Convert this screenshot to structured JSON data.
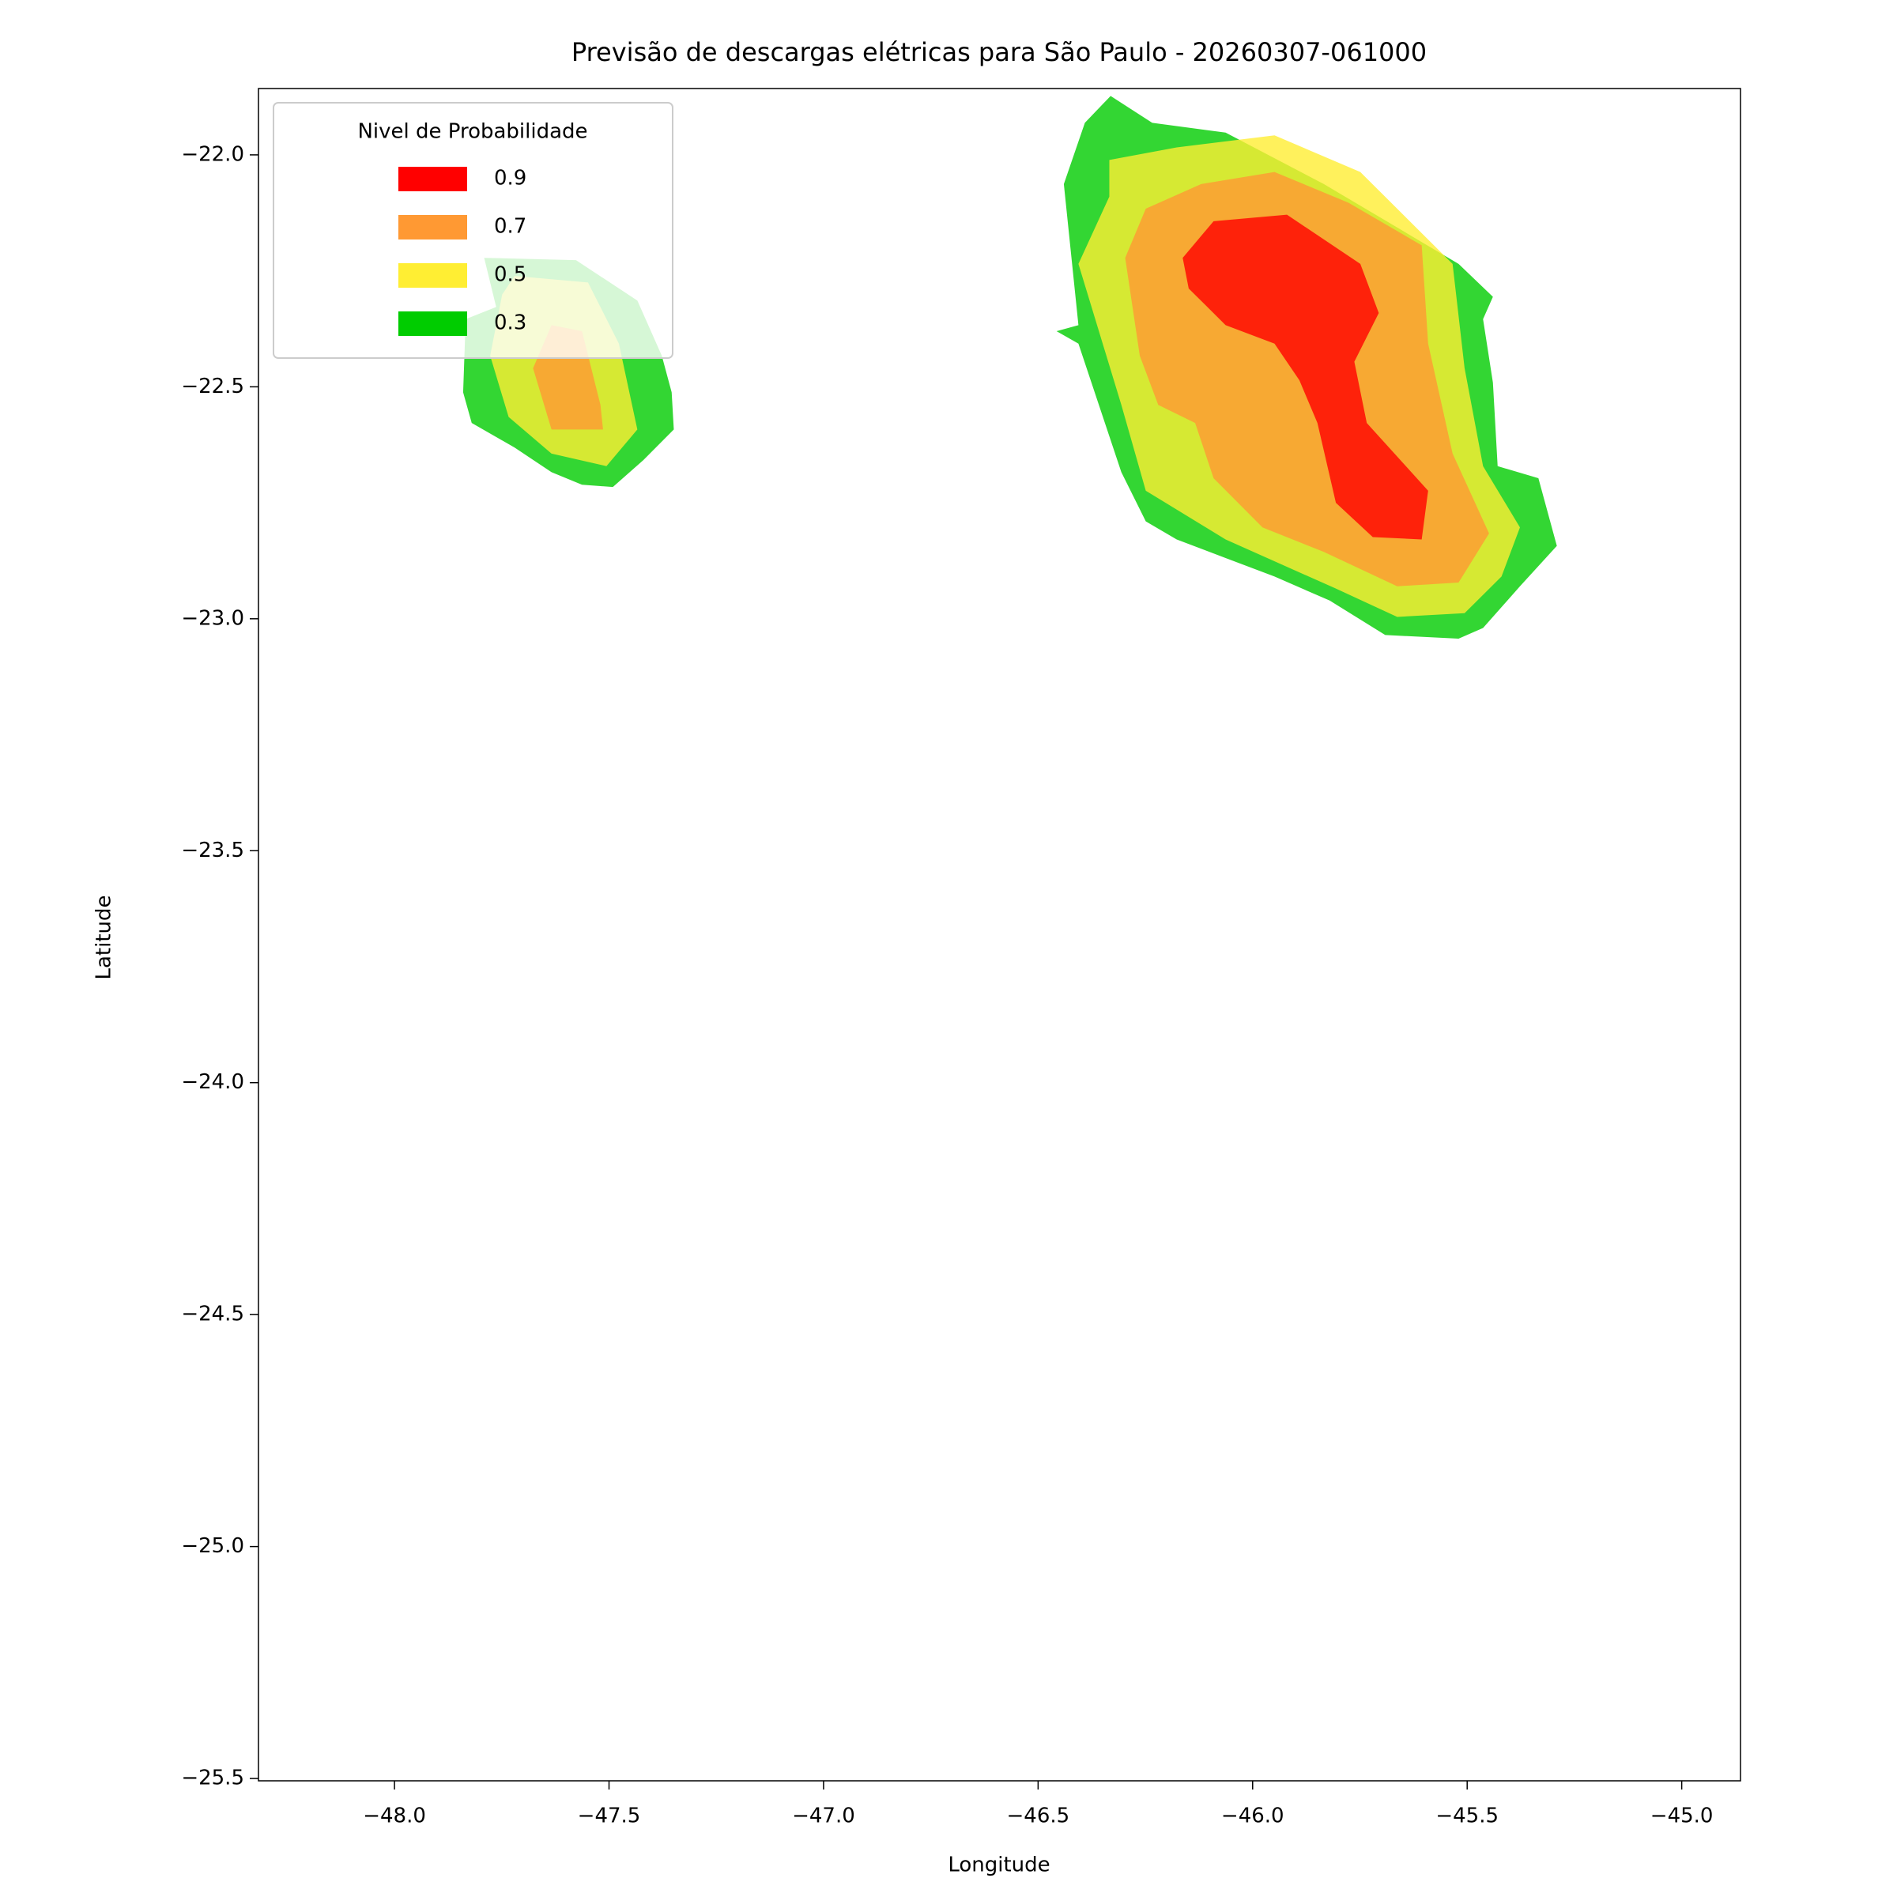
{
  "chart_data": {
    "type": "contour",
    "title": "Previsão de descargas elétricas para São Paulo - 20260307-061000",
    "x_label": "Longitude",
    "y_label": "Latitude",
    "xlim": [
      -48.317,
      -44.863
    ],
    "ylim": [
      -25.505,
      -21.857
    ],
    "xticks": [
      {
        "value": -48,
        "label": "−48.0"
      },
      {
        "value": -47.5,
        "label": "−47.5"
      },
      {
        "value": -47,
        "label": "−47.0"
      },
      {
        "value": -46.5,
        "label": "−46.5"
      },
      {
        "value": -46,
        "label": "−46.0"
      },
      {
        "value": -45.5,
        "label": "−45.5"
      },
      {
        "value": -45,
        "label": "−45.0"
      }
    ],
    "yticks": [
      {
        "value": -22,
        "label": "−22.0"
      },
      {
        "value": -22.5,
        "label": "−22.5"
      },
      {
        "value": -23,
        "label": "−23.0"
      },
      {
        "value": -23.5,
        "label": "−23.5"
      },
      {
        "value": -24,
        "label": "−24.0"
      },
      {
        "value": -24.5,
        "label": "−24.5"
      },
      {
        "value": -25,
        "label": "−25.0"
      },
      {
        "value": -25.5,
        "label": "−25.5"
      }
    ],
    "legend_title": "Nivel de Probabilidade",
    "legend_position": "upper-left",
    "alpha": 0.8,
    "series": [
      {
        "name": "0.9",
        "color": "#ff0000",
        "polygons": [
          [
            [
              -46.091,
              -22.143
            ],
            [
              -45.92,
              -22.129
            ],
            [
              -45.749,
              -22.235
            ],
            [
              -45.706,
              -22.341
            ],
            [
              -45.763,
              -22.446
            ],
            [
              -45.734,
              -22.578
            ],
            [
              -45.591,
              -22.724
            ],
            [
              -45.606,
              -22.829
            ],
            [
              -45.72,
              -22.824
            ],
            [
              -45.806,
              -22.75
            ],
            [
              -45.849,
              -22.578
            ],
            [
              -45.891,
              -22.486
            ],
            [
              -45.949,
              -22.407
            ],
            [
              -46.063,
              -22.367
            ],
            [
              -46.149,
              -22.288
            ],
            [
              -46.163,
              -22.222
            ]
          ]
        ]
      },
      {
        "name": "0.7",
        "color": "#ff9933",
        "polygons": [
          [
            [
              -46.249,
              -22.116
            ],
            [
              -46.12,
              -22.063
            ],
            [
              -45.949,
              -22.037
            ],
            [
              -45.777,
              -22.103
            ],
            [
              -45.606,
              -22.195
            ],
            [
              -45.591,
              -22.407
            ],
            [
              -45.534,
              -22.644
            ],
            [
              -45.449,
              -22.816
            ],
            [
              -45.52,
              -22.922
            ],
            [
              -45.663,
              -22.93
            ],
            [
              -45.834,
              -22.856
            ],
            [
              -45.977,
              -22.803
            ],
            [
              -46.091,
              -22.697
            ],
            [
              -46.134,
              -22.578
            ],
            [
              -46.22,
              -22.539
            ],
            [
              -46.263,
              -22.433
            ],
            [
              -46.297,
              -22.222
            ]
          ],
          [
            [
              -47.634,
              -22.367
            ],
            [
              -47.563,
              -22.38
            ],
            [
              -47.52,
              -22.539
            ],
            [
              -47.514,
              -22.592
            ],
            [
              -47.634,
              -22.592
            ],
            [
              -47.677,
              -22.46
            ]
          ]
        ]
      },
      {
        "name": "0.5",
        "color": "#ffee33",
        "polygons": [
          [
            [
              -46.334,
              -22.011
            ],
            [
              -46.177,
              -21.984
            ],
            [
              -45.949,
              -21.958
            ],
            [
              -45.749,
              -22.037
            ],
            [
              -45.534,
              -22.235
            ],
            [
              -45.506,
              -22.46
            ],
            [
              -45.463,
              -22.671
            ],
            [
              -45.377,
              -22.803
            ],
            [
              -45.42,
              -22.909
            ],
            [
              -45.506,
              -22.988
            ],
            [
              -45.663,
              -22.996
            ],
            [
              -45.806,
              -22.935
            ],
            [
              -46.063,
              -22.829
            ],
            [
              -46.249,
              -22.724
            ],
            [
              -46.306,
              -22.539
            ],
            [
              -46.406,
              -22.235
            ],
            [
              -46.334,
              -22.09
            ]
          ],
          [
            [
              -47.72,
              -22.261
            ],
            [
              -47.549,
              -22.275
            ],
            [
              -47.477,
              -22.407
            ],
            [
              -47.434,
              -22.592
            ],
            [
              -47.506,
              -22.671
            ],
            [
              -47.634,
              -22.644
            ],
            [
              -47.734,
              -22.565
            ],
            [
              -47.777,
              -22.433
            ],
            [
              -47.749,
              -22.301
            ]
          ]
        ]
      },
      {
        "name": "0.3",
        "color": "#00cc00",
        "polygons": [
          [
            [
              -46.331,
              -21.873
            ],
            [
              -46.234,
              -21.931
            ],
            [
              -46.063,
              -21.952
            ],
            [
              -45.834,
              -22.063
            ],
            [
              -45.52,
              -22.235
            ],
            [
              -45.44,
              -22.306
            ],
            [
              -45.463,
              -22.354
            ],
            [
              -45.44,
              -22.491
            ],
            [
              -45.429,
              -22.671
            ],
            [
              -45.334,
              -22.697
            ],
            [
              -45.291,
              -22.843
            ],
            [
              -45.377,
              -22.93
            ],
            [
              -45.463,
              -23.02
            ],
            [
              -45.52,
              -23.043
            ],
            [
              -45.691,
              -23.035
            ],
            [
              -45.82,
              -22.961
            ],
            [
              -45.949,
              -22.909
            ],
            [
              -46.063,
              -22.869
            ],
            [
              -46.177,
              -22.829
            ],
            [
              -46.249,
              -22.79
            ],
            [
              -46.306,
              -22.684
            ],
            [
              -46.406,
              -22.407
            ],
            [
              -46.457,
              -22.38
            ],
            [
              -46.406,
              -22.367
            ],
            [
              -46.44,
              -22.063
            ],
            [
              -46.391,
              -21.931
            ]
          ],
          [
            [
              -47.791,
              -22.222
            ],
            [
              -47.577,
              -22.227
            ],
            [
              -47.434,
              -22.314
            ],
            [
              -47.377,
              -22.433
            ],
            [
              -47.354,
              -22.512
            ],
            [
              -47.349,
              -22.592
            ],
            [
              -47.42,
              -22.658
            ],
            [
              -47.491,
              -22.716
            ],
            [
              -47.563,
              -22.711
            ],
            [
              -47.634,
              -22.684
            ],
            [
              -47.72,
              -22.631
            ],
            [
              -47.82,
              -22.578
            ],
            [
              -47.84,
              -22.512
            ],
            [
              -47.834,
              -22.354
            ],
            [
              -47.763,
              -22.328
            ]
          ]
        ]
      }
    ]
  }
}
